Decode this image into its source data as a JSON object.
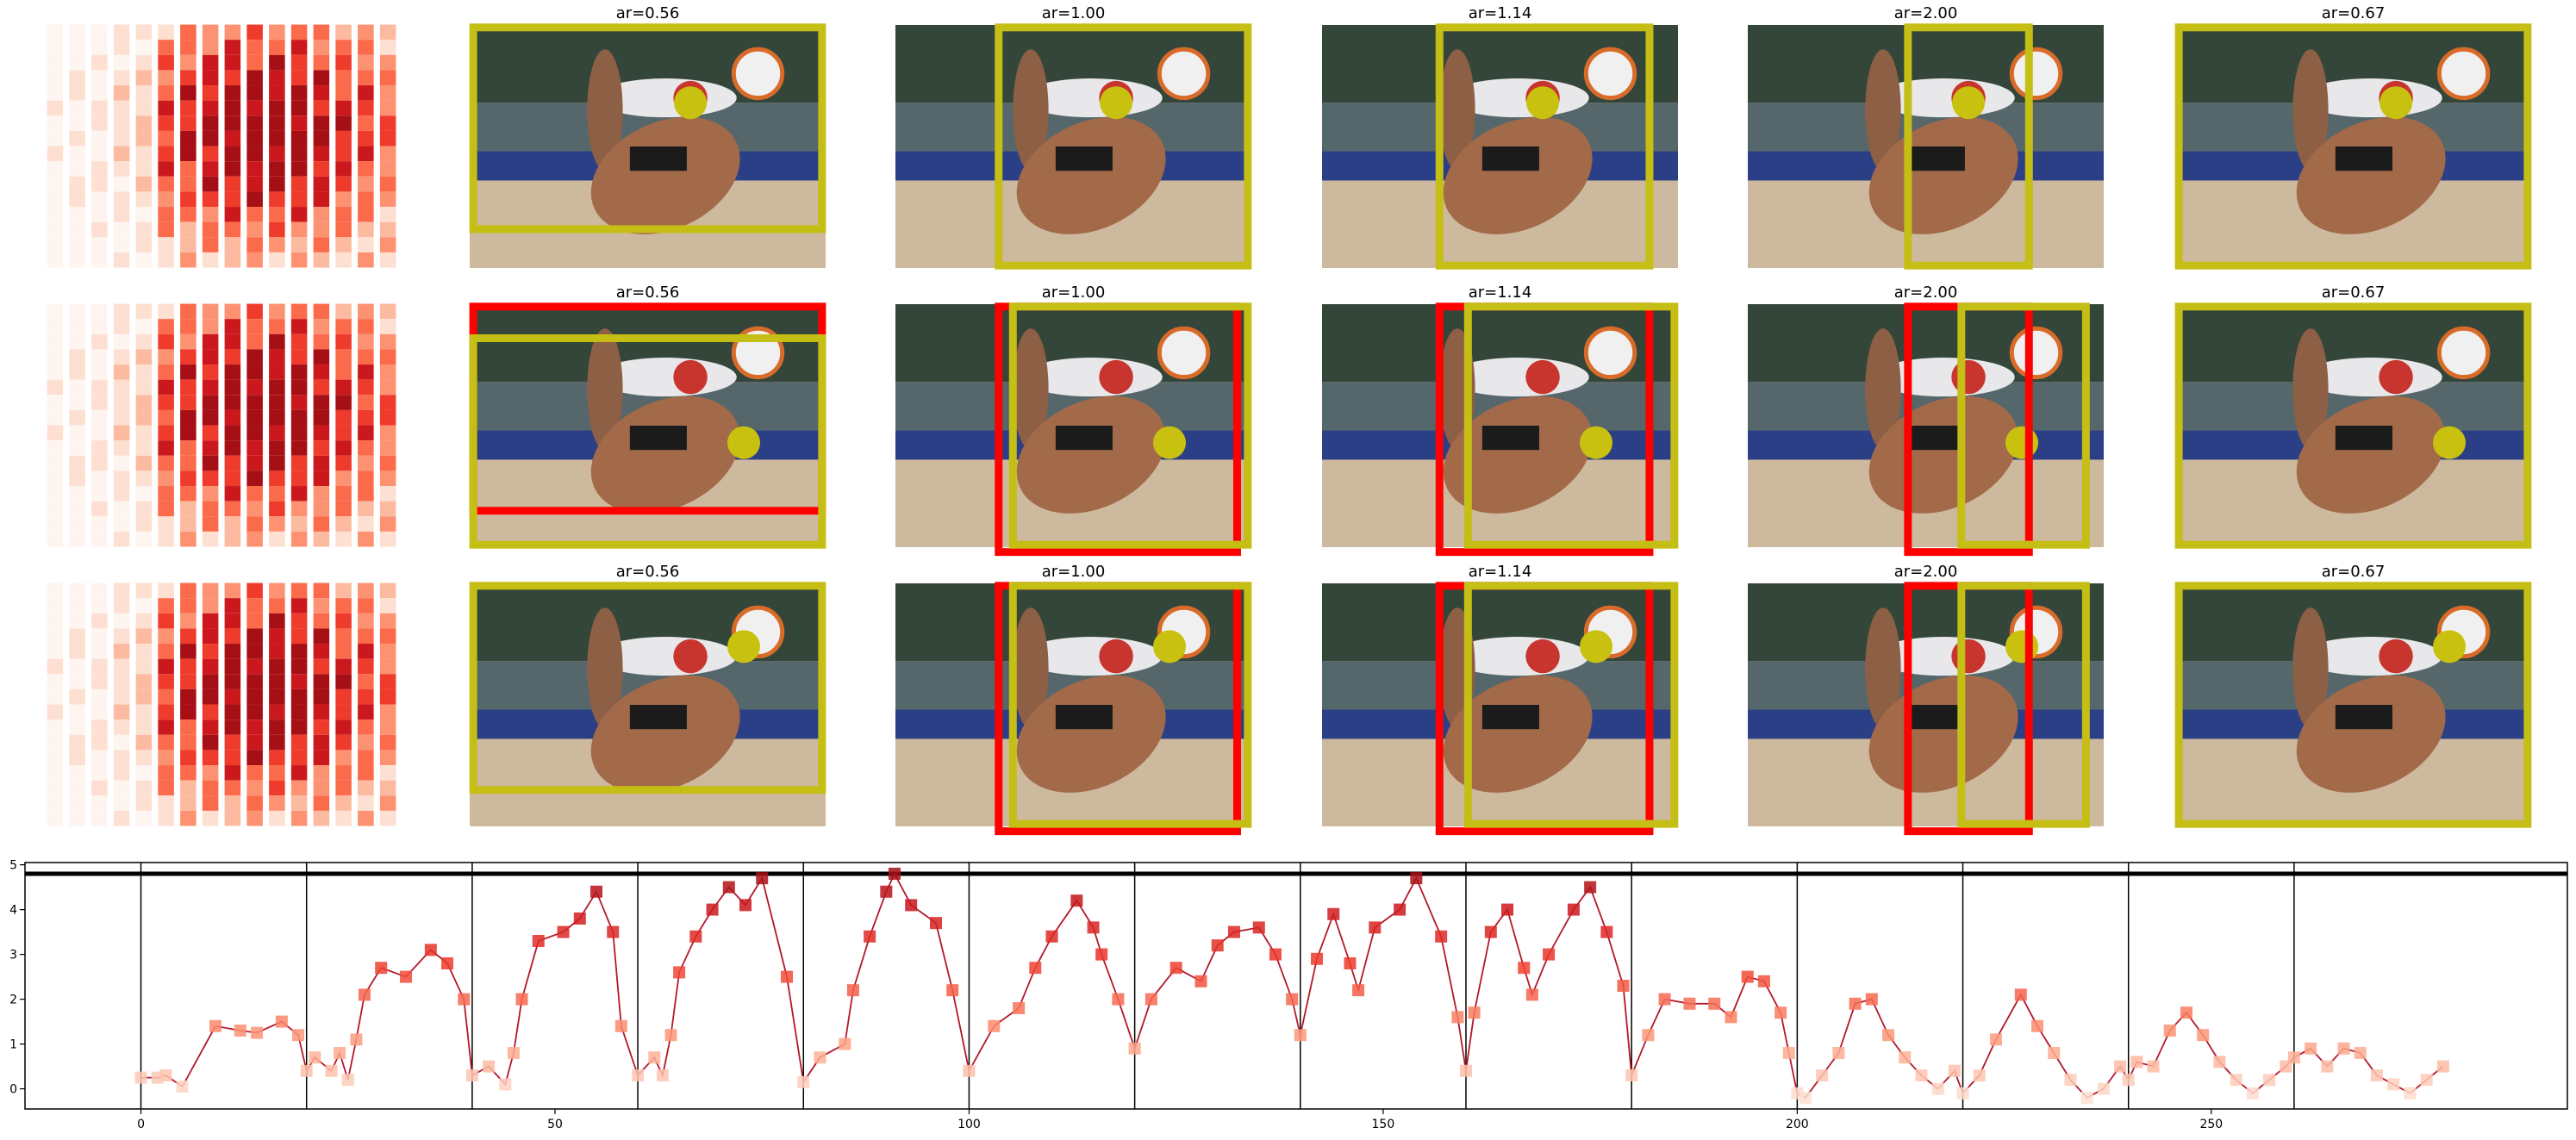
{
  "panels": {
    "rows": [
      [
        "ar=0.56",
        "ar=1.00",
        "ar=1.14",
        "ar=2.00",
        "ar=0.67"
      ],
      [
        "ar=0.56",
        "ar=1.00",
        "ar=1.14",
        "ar=2.00",
        "ar=0.67"
      ],
      [
        "ar=0.56",
        "ar=1.00",
        "ar=1.14",
        "ar=2.00",
        "ar=0.67"
      ]
    ]
  },
  "chart_data": {
    "type": "line",
    "x": [
      0,
      2,
      3,
      5,
      9,
      12,
      14,
      17,
      19,
      20,
      21,
      23,
      24,
      25,
      26,
      27,
      29,
      32,
      35,
      37,
      39,
      40,
      42,
      44,
      45,
      46,
      48,
      51,
      53,
      55,
      57,
      58,
      60,
      62,
      63,
      64,
      65,
      67,
      69,
      71,
      73,
      75,
      78,
      80,
      82,
      85,
      86,
      88,
      90,
      91,
      93,
      96,
      98,
      100,
      103,
      106,
      108,
      110,
      113,
      115,
      116,
      118,
      120,
      122,
      125,
      128,
      130,
      132,
      135,
      137,
      139,
      140,
      142,
      144,
      146,
      147,
      149,
      152,
      154,
      157,
      159,
      160,
      161,
      163,
      165,
      167,
      168,
      170,
      173,
      175,
      177,
      179,
      180,
      182,
      184,
      187,
      190,
      192,
      194,
      196,
      198,
      199,
      200,
      201,
      203,
      205,
      207,
      209,
      211,
      213,
      215,
      217,
      219,
      220,
      222,
      224,
      227,
      229,
      231,
      233,
      235,
      237,
      239,
      240,
      241,
      243,
      245,
      247,
      249,
      251,
      253,
      255,
      257,
      259,
      260,
      262,
      264,
      266,
      268,
      270,
      272,
      274,
      276,
      278
    ],
    "values": [
      0.25,
      0.25,
      0.3,
      0.05,
      1.4,
      1.3,
      1.25,
      1.5,
      1.2,
      0.4,
      0.7,
      0.4,
      0.8,
      0.2,
      1.1,
      2.1,
      2.7,
      2.5,
      3.1,
      2.8,
      2.0,
      0.3,
      0.5,
      0.1,
      0.8,
      2.0,
      3.3,
      3.5,
      3.8,
      4.4,
      3.5,
      1.4,
      0.3,
      0.7,
      0.3,
      1.2,
      2.6,
      3.4,
      4.0,
      4.5,
      4.1,
      4.7,
      2.5,
      0.15,
      0.7,
      1.0,
      2.2,
      3.4,
      4.4,
      4.8,
      4.1,
      3.7,
      2.2,
      0.4,
      1.4,
      1.8,
      2.7,
      3.4,
      4.2,
      3.6,
      3.0,
      2.0,
      0.9,
      2.0,
      2.7,
      2.4,
      3.2,
      3.5,
      3.6,
      3.0,
      2.0,
      1.2,
      2.9,
      3.9,
      2.8,
      2.2,
      3.6,
      4.0,
      4.7,
      3.4,
      1.6,
      0.4,
      1.7,
      3.5,
      4.0,
      2.7,
      2.1,
      3.0,
      4.0,
      4.5,
      3.5,
      2.3,
      0.3,
      1.2,
      2.0,
      1.9,
      1.9,
      1.6,
      2.5,
      2.4,
      1.7,
      0.8,
      -0.1,
      -0.2,
      0.3,
      0.8,
      1.9,
      2.0,
      1.2,
      0.7,
      0.3,
      0.0,
      0.4,
      -0.1,
      0.3,
      1.1,
      2.1,
      1.4,
      0.8,
      0.2,
      -0.2,
      0.0,
      0.5,
      0.2,
      0.6,
      0.5,
      1.3,
      1.7,
      1.2,
      0.6,
      0.2,
      -0.1,
      0.2,
      0.5,
      0.7,
      0.9,
      0.5,
      0.9,
      0.8,
      0.3,
      0.1,
      -0.1,
      0.2,
      0.5
    ],
    "color": "#b2182b",
    "colormap": "Reds",
    "xlim": [
      -14,
      293
    ],
    "ylim": [
      -0.45,
      5.05
    ],
    "xticks": [
      0,
      50,
      100,
      150,
      200,
      250
    ],
    "yticks": [
      0,
      1,
      2,
      3,
      4,
      5
    ],
    "vlines": [
      0,
      20,
      40,
      60,
      80,
      100,
      120,
      140,
      160,
      180,
      200,
      220,
      240,
      260
    ],
    "hline": 4.8
  }
}
